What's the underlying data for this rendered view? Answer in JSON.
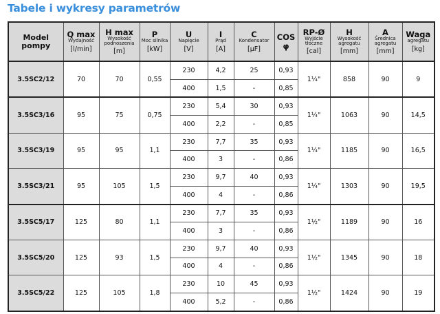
{
  "title": "Tabele i wykresy parametrów",
  "colors": {
    "title": "#3a8fdc",
    "header_bg": "#d9d9d9",
    "model_bg": "#dcdcdc"
  },
  "columns": [
    {
      "symbol": "Model pompy",
      "desc": "",
      "unit": ""
    },
    {
      "symbol": "Q max",
      "desc": "Wydajność",
      "unit": "[l/min]"
    },
    {
      "symbol": "H max",
      "desc": "Wysokość podnoszenia",
      "unit": "[m]"
    },
    {
      "symbol": "P",
      "desc": "Moc silnika",
      "unit": "[kW]"
    },
    {
      "symbol": "U",
      "desc": "Napięcie",
      "unit": "[V]"
    },
    {
      "symbol": "I",
      "desc": "Prąd",
      "unit": "[A]"
    },
    {
      "symbol": "C",
      "desc": "Kondensator",
      "unit": "[μF]"
    },
    {
      "symbol": "COS φ",
      "desc": "",
      "unit": ""
    },
    {
      "symbol": "RP-Ø",
      "desc": "Wyjście tłoczne",
      "unit": "[cal]"
    },
    {
      "symbol": "H",
      "desc": "Wysokość agregatu",
      "unit": "[mm]"
    },
    {
      "symbol": "A",
      "desc": "Średnica agregatu",
      "unit": "[mm]"
    },
    {
      "symbol": "Waga",
      "desc": "agregatu",
      "unit": "[kg]"
    }
  ],
  "rows": [
    {
      "model": "3.5SC2/12",
      "q": "70",
      "h": "70",
      "p": "0,55",
      "sub": [
        {
          "u": "230",
          "i": "4,2",
          "c": "25",
          "cos": "0,93"
        },
        {
          "u": "400",
          "i": "1,5",
          "c": "-",
          "cos": "0,85"
        }
      ],
      "rp": "1¼\"",
      "ha": "858",
      "a": "90",
      "w": "9"
    },
    {
      "model": "3.5SC3/16",
      "q": "95",
      "h": "75",
      "p": "0,75",
      "sub": [
        {
          "u": "230",
          "i": "5,4",
          "c": "30",
          "cos": "0,93"
        },
        {
          "u": "400",
          "i": "2,2",
          "c": "-",
          "cos": "0,85"
        }
      ],
      "rp": "1¼\"",
      "ha": "1063",
      "a": "90",
      "w": "14,5"
    },
    {
      "model": "3.5SC3/19",
      "q": "95",
      "h": "95",
      "p": "1,1",
      "sub": [
        {
          "u": "230",
          "i": "7,7",
          "c": "35",
          "cos": "0,93"
        },
        {
          "u": "400",
          "i": "3",
          "c": "-",
          "cos": "0,86"
        }
      ],
      "rp": "1¼\"",
      "ha": "1185",
      "a": "90",
      "w": "16,5"
    },
    {
      "model": "3.5SC3/21",
      "q": "95",
      "h": "105",
      "p": "1,5",
      "sub": [
        {
          "u": "230",
          "i": "9,7",
          "c": "40",
          "cos": "0,93"
        },
        {
          "u": "400",
          "i": "4",
          "c": "-",
          "cos": "0,86"
        }
      ],
      "rp": "1¼\"",
      "ha": "1303",
      "a": "90",
      "w": "19,5"
    },
    {
      "model": "3.5SC5/17",
      "q": "125",
      "h": "80",
      "p": "1,1",
      "sub": [
        {
          "u": "230",
          "i": "7,7",
          "c": "35",
          "cos": "0,93"
        },
        {
          "u": "400",
          "i": "3",
          "c": "-",
          "cos": "0,86"
        }
      ],
      "rp": "1½\"",
      "ha": "1189",
      "a": "90",
      "w": "16"
    },
    {
      "model": "3.5SC5/20",
      "q": "125",
      "h": "93",
      "p": "1,5",
      "sub": [
        {
          "u": "230",
          "i": "9,7",
          "c": "40",
          "cos": "0,93"
        },
        {
          "u": "400",
          "i": "4",
          "c": "-",
          "cos": "0,86"
        }
      ],
      "rp": "1½\"",
      "ha": "1345",
      "a": "90",
      "w": "18"
    },
    {
      "model": "3.5SC5/22",
      "q": "125",
      "h": "105",
      "p": "1,8",
      "sub": [
        {
          "u": "230",
          "i": "10",
          "c": "45",
          "cos": "0,93"
        },
        {
          "u": "400",
          "i": "5,2",
          "c": "-",
          "cos": "0,86"
        }
      ],
      "rp": "1½\"",
      "ha": "1424",
      "a": "90",
      "w": "19"
    }
  ]
}
